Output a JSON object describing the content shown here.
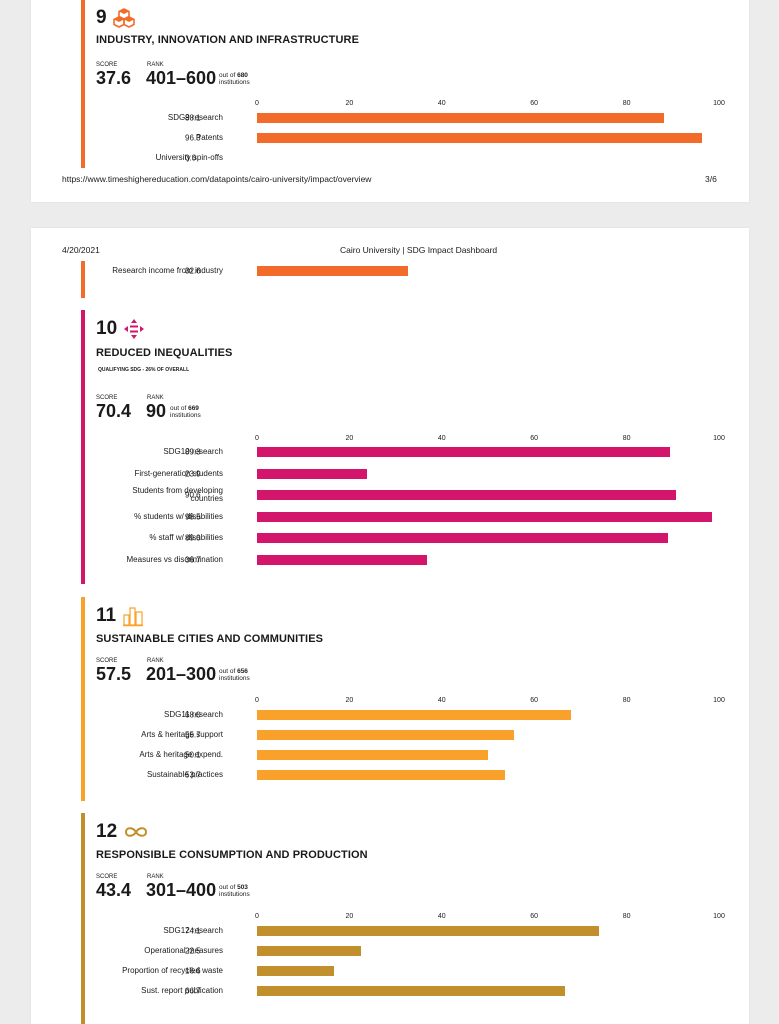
{
  "colors": {
    "sdg9": "#f26b2a",
    "sdg10": "#d3166b",
    "sdg11": "#f9a12a",
    "sdg12": "#c18f2c"
  },
  "page1": {
    "footer_url": "https://www.timeshighereducation.com/datapoints/cairo-university/impact/overview",
    "footer_page": "3/6"
  },
  "page2": {
    "date": "4/20/2021",
    "header_title": "Cairo University | SDG Impact Dashboard"
  },
  "labels": {
    "score": "SCORE",
    "rank": "RANK",
    "out_of": "out of",
    "institutions": "institutions"
  },
  "axis_ticks": [
    "0",
    "20",
    "40",
    "60",
    "80",
    "100"
  ],
  "sdg9": {
    "number": "9",
    "icon": "cubes-icon",
    "title": "INDUSTRY, INNOVATION AND INFRASTRUCTURE",
    "score": "37.6",
    "rank": "401–600",
    "out_of_count": "680",
    "metrics": [
      {
        "label": "SDG9 research",
        "value": "88.1",
        "v": 88.1
      },
      {
        "label": "Patents",
        "value": "96.3",
        "v": 96.3
      },
      {
        "label": "University spin-offs",
        "value": "0.0",
        "v": 0.0
      }
    ],
    "continued_metric": {
      "label": "Research income from industry",
      "value": "32.6",
      "v": 32.6
    }
  },
  "sdg10": {
    "number": "10",
    "icon": "equality-arrows-icon",
    "title": "REDUCED INEQUALITIES",
    "qualifying": "QUALIFYING SDG - 26% OF OVERALL",
    "score": "70.4",
    "rank": "90",
    "out_of_count": "669",
    "metrics": [
      {
        "label": "SDG10 research",
        "value": "89.3",
        "v": 89.3
      },
      {
        "label": "First-generation students",
        "value": "23.9",
        "v": 23.9
      },
      {
        "label": "Students from developing countries",
        "value": "90.6",
        "v": 90.6
      },
      {
        "label": "% students w/ disabilities",
        "value": "98.5",
        "v": 98.5
      },
      {
        "label": "% staff w/ disabilities",
        "value": "89.0",
        "v": 89.0
      },
      {
        "label": "Measures vs discrimination",
        "value": "36.7",
        "v": 36.7
      }
    ]
  },
  "sdg11": {
    "number": "11",
    "icon": "city-buildings-icon",
    "title": "SUSTAINABLE CITIES AND COMMUNITIES",
    "score": "57.5",
    "rank": "201–300",
    "out_of_count": "656",
    "metrics": [
      {
        "label": "SDG11 research",
        "value": "68.0",
        "v": 68.0
      },
      {
        "label": "Arts & heritage support",
        "value": "55.7",
        "v": 55.7
      },
      {
        "label": "Arts & heritage expend.",
        "value": "50.1",
        "v": 50.1
      },
      {
        "label": "Sustainable practices",
        "value": "53.7",
        "v": 53.7
      }
    ]
  },
  "sdg12": {
    "number": "12",
    "icon": "infinity-loop-icon",
    "title": "RESPONSIBLE CONSUMPTION AND PRODUCTION",
    "score": "43.4",
    "rank": "301–400",
    "out_of_count": "503",
    "metrics": [
      {
        "label": "SDG12 research",
        "value": "74.1",
        "v": 74.1
      },
      {
        "label": "Operational measures",
        "value": "22.5",
        "v": 22.5
      },
      {
        "label": "Proportion of recycled waste",
        "value": "16.6",
        "v": 16.6
      },
      {
        "label": "Sust. report publication",
        "value": "66.7",
        "v": 66.7
      }
    ]
  },
  "chart_data": [
    {
      "type": "bar",
      "title": "INDUSTRY, INNOVATION AND INFRASTRUCTURE",
      "categories": [
        "SDG9 research",
        "Patents",
        "University spin-offs",
        "Research income from industry"
      ],
      "values": [
        88.1,
        96.3,
        0.0,
        32.6
      ],
      "xlim": [
        0,
        100
      ]
    },
    {
      "type": "bar",
      "title": "REDUCED INEQUALITIES",
      "categories": [
        "SDG10 research",
        "First-generation students",
        "Students from developing countries",
        "% students w/ disabilities",
        "% staff w/ disabilities",
        "Measures vs discrimination"
      ],
      "values": [
        89.3,
        23.9,
        90.6,
        98.5,
        89.0,
        36.7
      ],
      "xlim": [
        0,
        100
      ]
    },
    {
      "type": "bar",
      "title": "SUSTAINABLE CITIES AND COMMUNITIES",
      "categories": [
        "SDG11 research",
        "Arts & heritage support",
        "Arts & heritage expend.",
        "Sustainable practices"
      ],
      "values": [
        68.0,
        55.7,
        50.1,
        53.7
      ],
      "xlim": [
        0,
        100
      ]
    },
    {
      "type": "bar",
      "title": "RESPONSIBLE CONSUMPTION AND PRODUCTION",
      "categories": [
        "SDG12 research",
        "Operational measures",
        "Proportion of recycled waste",
        "Sust. report publication"
      ],
      "values": [
        74.1,
        22.5,
        16.6,
        66.7
      ],
      "xlim": [
        0,
        100
      ]
    }
  ]
}
